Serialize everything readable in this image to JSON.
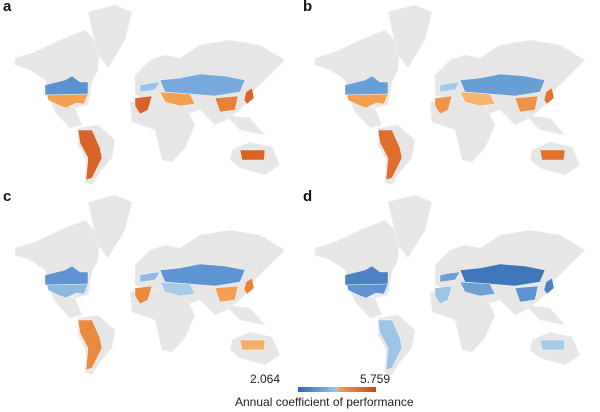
{
  "panels": [
    {
      "label": "a",
      "colors": {
        "us_north": "#5b93d0",
        "us_south": "#f3a050",
        "mexico": "#e6e6e6",
        "south_america": "#d8642a",
        "europe": "#9cc4e6",
        "asia_north": "#78a9dc",
        "asia_south": "#f2a24e",
        "north_africa": "#d8642a",
        "japan": "#d8642a",
        "south_china": "#e8823a",
        "australia": "#d8642a"
      }
    },
    {
      "label": "b",
      "colors": {
        "us_north": "#6a9fd6",
        "us_south": "#f3a050",
        "mexico": "#e6e6e6",
        "south_america": "#e06e2e",
        "europe": "#a8cbe8",
        "asia_north": "#6a9fd6",
        "asia_south": "#f5b36c",
        "north_africa": "#f0934a",
        "japan": "#e0732f",
        "south_china": "#f0934a",
        "australia": "#e0732f"
      }
    },
    {
      "label": "c",
      "colors": {
        "us_north": "#5d94d1",
        "us_south": "#8db8e0",
        "mexico": "#e6e6e6",
        "south_america": "#ea8a3e",
        "europe": "#8fbbe2",
        "asia_north": "#5d94d1",
        "asia_south": "#a8cbe8",
        "north_africa": "#ea8a3e",
        "japan": "#e8823a",
        "south_china": "#f3a050",
        "australia": "#f3b06a"
      }
    },
    {
      "label": "d",
      "colors": {
        "us_north": "#4a82c2",
        "us_south": "#5d94d1",
        "mexico": "#e6e6e6",
        "south_america": "#9cc4e6",
        "europe": "#6f9fd3",
        "asia_north": "#3f77ba",
        "asia_south": "#6f9fd3",
        "north_africa": "#9cc4e6",
        "japan": "#4a82c2",
        "south_china": "#5d94d1",
        "australia": "#a8cbe8"
      }
    }
  ],
  "legend": {
    "min": "2.064",
    "max": "5.759",
    "title": "Annual coefficient of performance"
  }
}
